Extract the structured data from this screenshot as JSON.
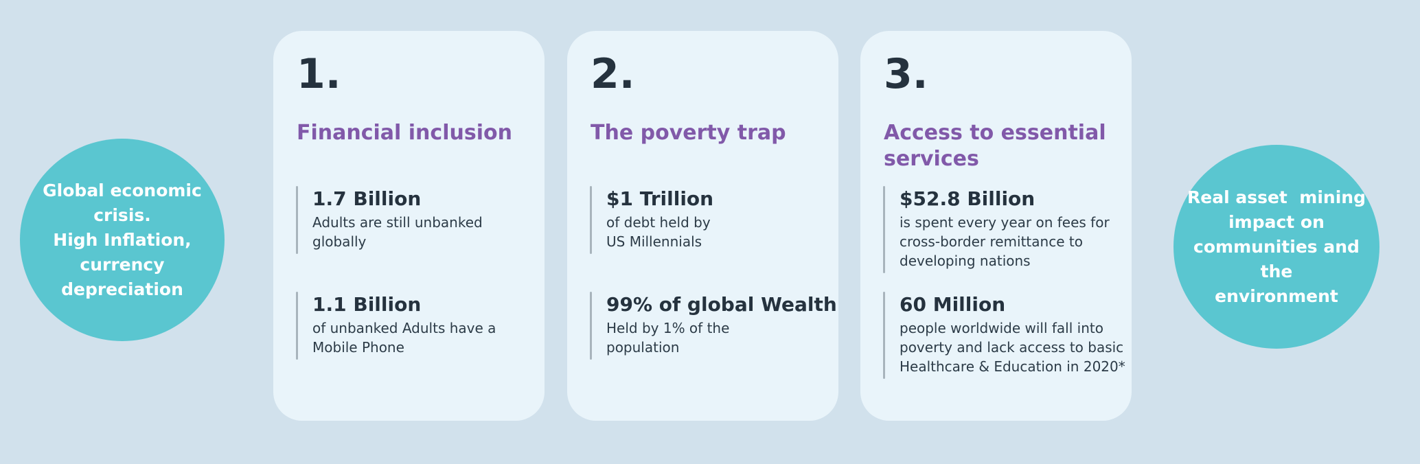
{
  "colors": {
    "background": "#d1e1ec",
    "card_background": "#e9f4fa",
    "circle_background": "#5ac6d0",
    "circle_text": "#ffffff",
    "heading_purple": "#8159a9",
    "text_dark_navy": "#25323e",
    "stat_bar_gray": "#a8b4bc"
  },
  "left_circle": {
    "text": "Global economic\ncrisis.\nHigh Inflation,\ncurrency\ndepreciation"
  },
  "right_circle": {
    "text": "Real asset  mining\nimpact on\ncommunities and the\nenvironment"
  },
  "cards": [
    {
      "number": "1.",
      "title": "Financial inclusion",
      "stats": [
        {
          "value": "1.7 Billion",
          "desc": "Adults are still unbanked\nglobally"
        },
        {
          "value": "1.1 Billion",
          "desc": "of unbanked Adults have a\nMobile Phone"
        }
      ]
    },
    {
      "number": "2.",
      "title": "The poverty trap",
      "stats": [
        {
          "value": "$1 Trillion",
          "desc": "of debt held by\nUS Millennials"
        },
        {
          "value": "99% of global Wealth",
          "desc": "Held by 1% of the\npopulation"
        }
      ]
    },
    {
      "number": "3.",
      "title": "Access to essential\nservices",
      "stats": [
        {
          "value": "$52.8 Billion",
          "desc": "is spent every year on fees for\ncross-border remittance to\ndeveloping nations"
        },
        {
          "value": "60 Million",
          "desc": "people worldwide will fall into\npoverty and lack access to basic\nHealthcare & Education in 2020*"
        }
      ]
    }
  ]
}
